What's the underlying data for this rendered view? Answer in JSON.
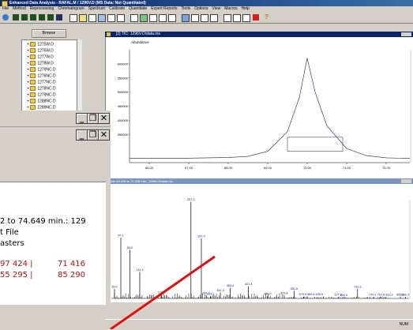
{
  "app": {
    "title": "Enhanced Data Analysis - RAFAL.M / 1296V.D (MS Data: Not Quantitated)",
    "menu": [
      "File",
      "Method",
      "Reprocessing",
      "Chromatogram",
      "Spectrum",
      "Calibrate",
      "Quantitate",
      "Expert Reports",
      "Tools",
      "Options",
      "View",
      "Macros",
      "Help"
    ],
    "colors": {
      "title_bar": "#0a246a",
      "peak_marker": "#cc0000",
      "tic_line": "#1a1a5a",
      "annotation": "#e01010"
    }
  },
  "left_panel": {
    "browse_label": "Browse",
    "files": [
      "1275W.D",
      "1276W.D",
      "1277W.D",
      "1278W.D",
      "1279NC.D",
      "1276NC.D",
      "1277NC.D",
      "1278NC.D",
      "1279NC.D",
      "1288NC.D",
      "1289NC.D",
      "1292NC.D"
    ]
  },
  "tic_window": {
    "title": "[2] TIC: 1296V.D\\data.ms",
    "ylabel": "Abundance",
    "y_ticks": [
      "600000",
      "550000",
      "500000",
      "450000",
      "400000",
      "350000"
    ],
    "x_ticks": [
      "66.00",
      "67.00",
      "68.00",
      "69.00",
      "70.00",
      "71.00",
      "72.00"
    ],
    "chart_data": {
      "type": "line",
      "peak_time": 70.0,
      "peak_abundance": 620000,
      "x": [
        65.5,
        66,
        67,
        68,
        68.5,
        69,
        69.5,
        69.8,
        70,
        70.2,
        70.5,
        71,
        71.5,
        72,
        72.6
      ],
      "y": [
        265000,
        265000,
        266000,
        268000,
        272000,
        290000,
        360000,
        480000,
        620000,
        500000,
        380000,
        300000,
        275000,
        267000,
        265000
      ]
    }
  },
  "spec_window": {
    "title": "Scan 69.349 to 70.428 min.: 1296V.D\\data.ms",
    "chart_data": {
      "type": "bar",
      "x": [
        39.0,
        57.1,
        83.0,
        111.1,
        173.1,
        257.3,
        287.0,
        301.1,
        313.2,
        341.3,
        369.4,
        421.4,
        476.0,
        523.6,
        551.6,
        579.5,
        589.5,
        635.5,
        677.7,
        694.0,
        732.9,
        779.1,
        797.6,
        813.2,
        855.2,
        869.3
      ],
      "y": [
        25,
        160,
        128,
        70,
        10,
        255,
        158,
        8,
        6,
        16,
        28,
        32,
        6,
        8,
        20,
        5,
        5,
        5,
        4,
        3,
        25,
        4,
        4,
        4,
        4,
        4
      ]
    },
    "labels": [
      "39.0",
      "57.1",
      "83.0",
      "111.1",
      "173.1",
      "257.3",
      "287.0",
      "301.1",
      "313.2",
      "341.3",
      "369.4",
      "421.4",
      "476.0",
      "523.6",
      "551.6",
      "579.5 589.5 635.5",
      "677.7",
      "694.0",
      "732.9",
      "779.1 797.6 813.2",
      "855.2",
      "869.3"
    ]
  },
  "overlay_window": {
    "header_line": "2 to 74.649 min.: 129",
    "line2": "t File",
    "line3": "asters",
    "row1": {
      "a": "97 424 |",
      "b": "71 416"
    },
    "row2": {
      "a": "55 295 |",
      "b": "85 290"
    }
  },
  "status": {
    "num": "NUM"
  }
}
